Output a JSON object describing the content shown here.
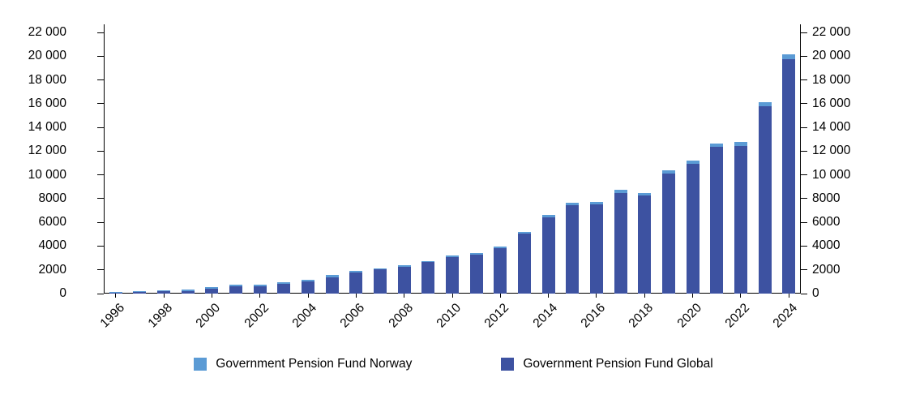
{
  "chart_data": {
    "type": "bar",
    "stacked": true,
    "title": "",
    "categories": [
      1996,
      1997,
      1998,
      1999,
      2000,
      2001,
      2002,
      2003,
      2004,
      2005,
      2006,
      2007,
      2008,
      2009,
      2010,
      2011,
      2012,
      2013,
      2014,
      2015,
      2016,
      2017,
      2018,
      2019,
      2020,
      2021,
      2022,
      2023,
      2024
    ],
    "series": [
      {
        "name": "Government Pension Fund Norway",
        "color": "#5B9BD5",
        "values": [
          103,
          112,
          117,
          125,
          130,
          133,
          122,
          139,
          153,
          170,
          107,
          117,
          88,
          117,
          135,
          129,
          145,
          168,
          186,
          198,
          212,
          240,
          239,
          269,
          292,
          333,
          318,
          353,
          382
        ]
      },
      {
        "name": "Government Pension Fund Global",
        "color": "#3D52A1",
        "values": [
          48,
          113,
          172,
          222,
          386,
          619,
          609,
          845,
          1016,
          1399,
          1784,
          2019,
          2275,
          2640,
          3077,
          3312,
          3816,
          5038,
          6431,
          7471,
          7510,
          8488,
          8256,
          10088,
          10914,
          12340,
          12429,
          15765,
          19742
        ]
      }
    ],
    "stack_order_bottom_to_top": [
      1,
      0
    ],
    "ylim": [
      0,
      22000
    ],
    "yticks": [
      0,
      2000,
      4000,
      6000,
      8000,
      10000,
      12000,
      14000,
      16000,
      18000,
      20000,
      22000
    ],
    "ytick_labels": [
      "0",
      "2000",
      "4000",
      "6000",
      "8000",
      "10 000",
      "12 000",
      "14 000",
      "16 000",
      "18 000",
      "20 000",
      "22 000"
    ],
    "xtick_labels": [
      "1996",
      "1998",
      "2000",
      "2002",
      "2004",
      "2006",
      "2008",
      "2010",
      "2012",
      "2014",
      "2016",
      "2018",
      "2020",
      "2022",
      "2024"
    ],
    "grid": false,
    "legend_position": "bottom",
    "axes": {
      "left": true,
      "right": true,
      "bottom": true,
      "top": false
    },
    "axis_color": "#000000",
    "text_color": "#000000"
  }
}
